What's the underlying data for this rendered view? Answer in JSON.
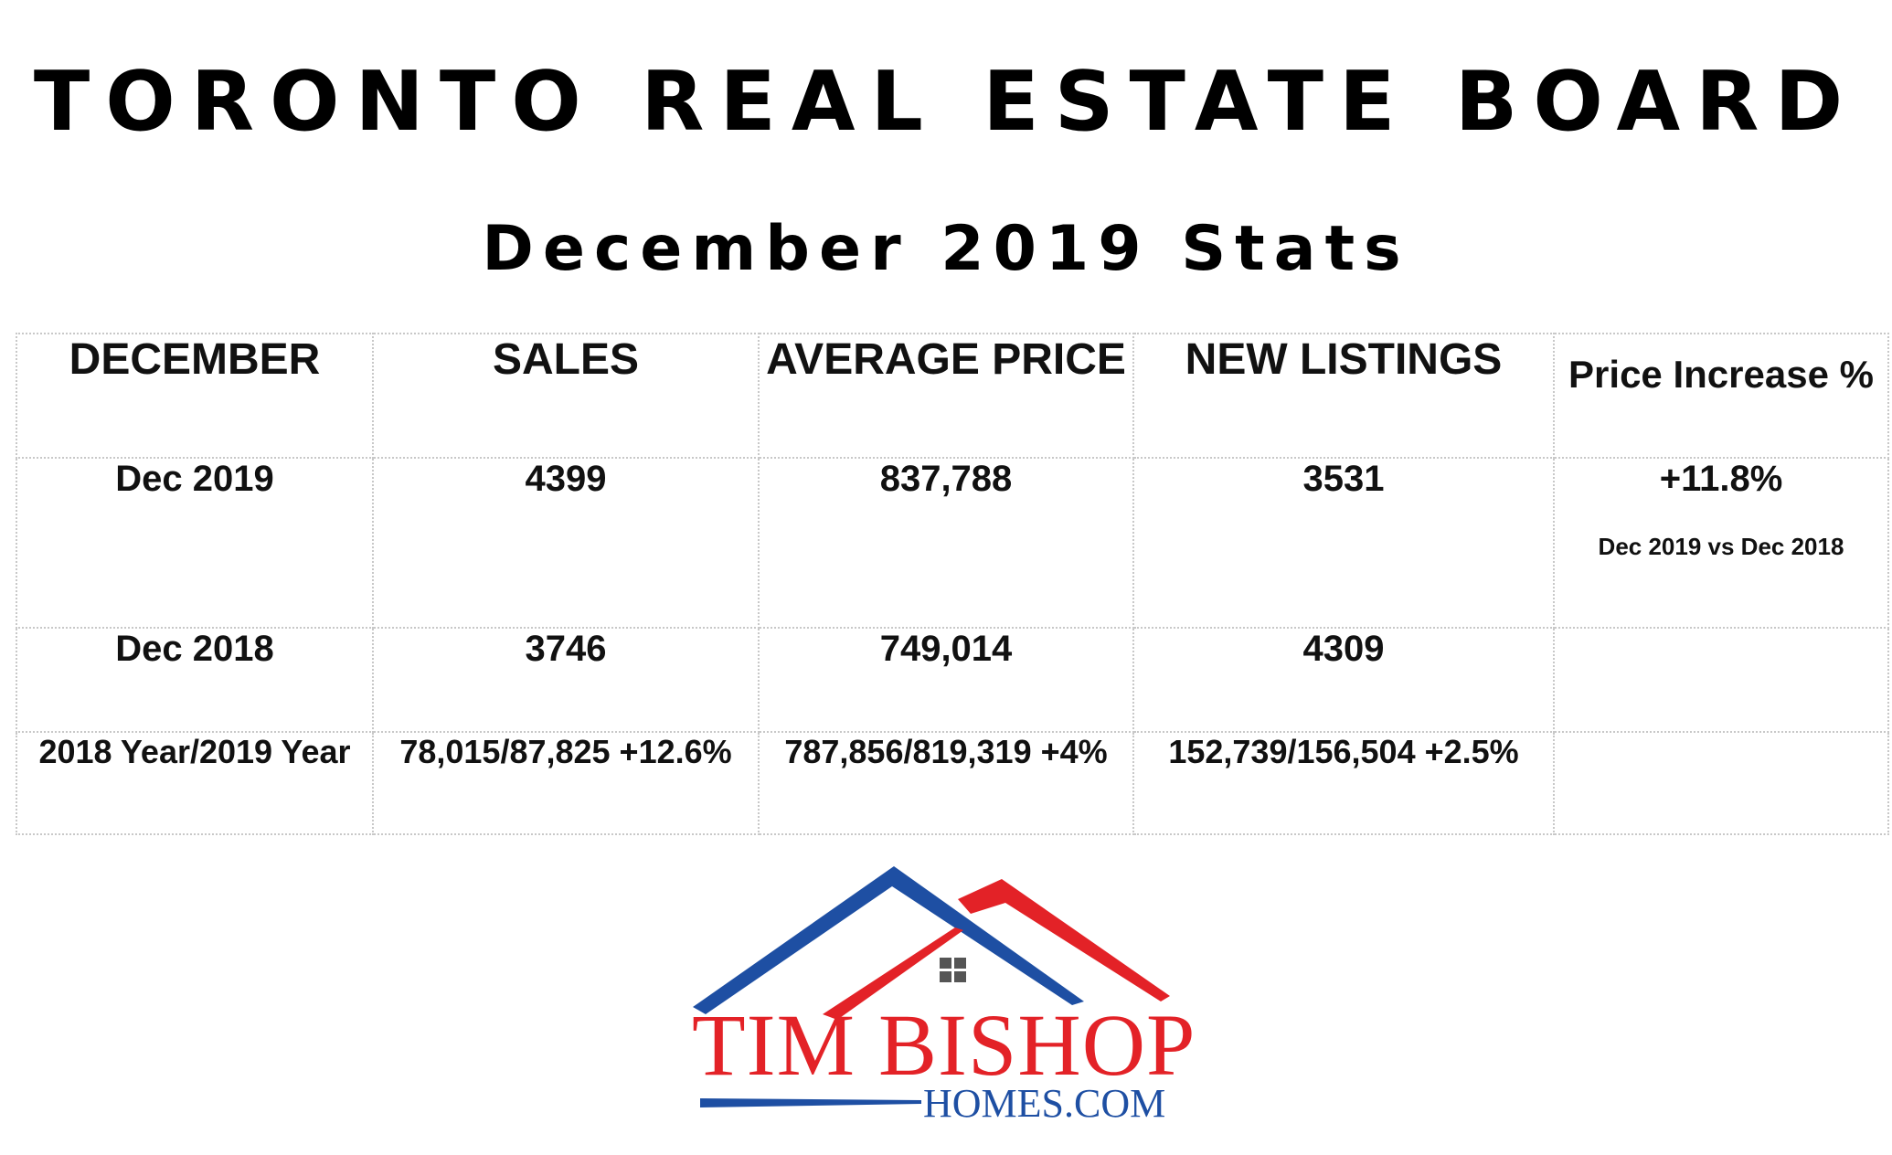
{
  "title": "TORONTO REAL ESTATE BOARD",
  "subtitle": "December 2019 Stats",
  "table": {
    "headers": [
      "DECEMBER",
      "SALES",
      "AVERAGE PRICE",
      "NEW LISTINGS",
      "Price Increase %"
    ],
    "rows": [
      {
        "period": "Dec 2019",
        "sales": "4399",
        "average_price": "837,788",
        "new_listings": "3531",
        "price_increase": "+11.8%",
        "price_increase_note": "Dec 2019 vs Dec 2018"
      },
      {
        "period": "Dec 2018",
        "sales": "3746",
        "average_price": "749,014",
        "new_listings": "4309",
        "price_increase": ""
      },
      {
        "period": "2018 Year/2019 Year",
        "sales": "78,015/87,825 +12.6%",
        "average_price": "787,856/819,319 +4%",
        "new_listings": "152,739/156,504 +2.5%",
        "price_increase": ""
      }
    ]
  },
  "logo": {
    "name": "TIM BISHOP",
    "domain": "HOMES.COM",
    "colors": {
      "red": "#e32227",
      "blue": "#1e4fa3"
    }
  }
}
